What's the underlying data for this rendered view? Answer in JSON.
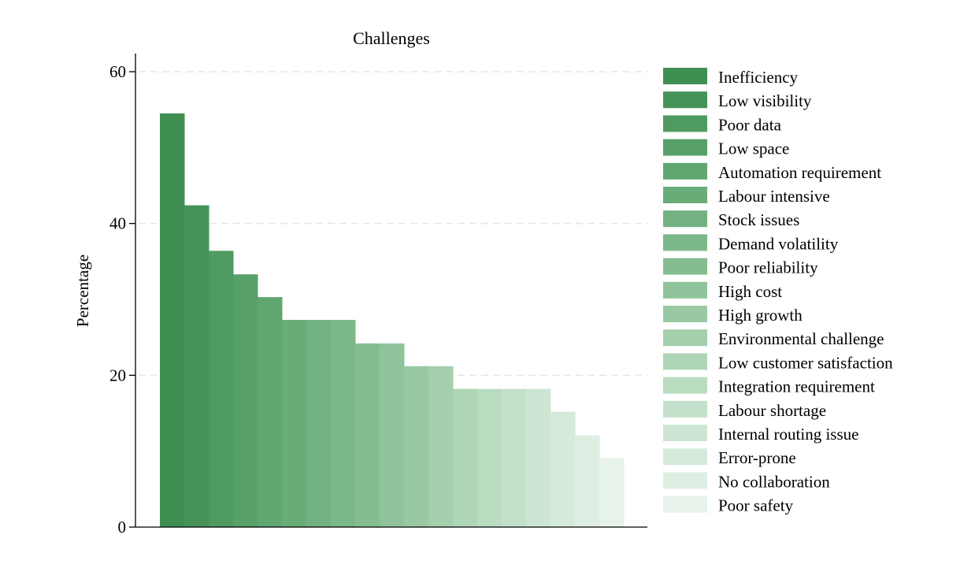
{
  "chart_data": {
    "type": "bar",
    "title": "Challenges",
    "xlabel": "",
    "ylabel": "Percentage",
    "ylim": [
      0,
      62
    ],
    "yticks": [
      0,
      20,
      40,
      60
    ],
    "grid": true,
    "legend_position": "right",
    "series": [
      {
        "name": "Inefficiency",
        "value": 54.5,
        "color": "#3f8f52"
      },
      {
        "name": "Low visibility",
        "value": 42.4,
        "color": "#46935a"
      },
      {
        "name": "Poor data",
        "value": 36.4,
        "color": "#4e9a61"
      },
      {
        "name": "Low space",
        "value": 33.3,
        "color": "#57a069"
      },
      {
        "name": "Automation requirement",
        "value": 30.3,
        "color": "#60a670"
      },
      {
        "name": "Labour intensive",
        "value": 27.3,
        "color": "#69ac78"
      },
      {
        "name": "Stock issues",
        "value": 27.3,
        "color": "#72b280"
      },
      {
        "name": "Demand volatility",
        "value": 27.3,
        "color": "#7bb788"
      },
      {
        "name": "Poor reliability",
        "value": 24.2,
        "color": "#85bd91"
      },
      {
        "name": "High cost",
        "value": 24.2,
        "color": "#8fc39a"
      },
      {
        "name": "High growth",
        "value": 21.2,
        "color": "#99c9a3"
      },
      {
        "name": "Environmental challenge",
        "value": 21.2,
        "color": "#a4cfad"
      },
      {
        "name": "Low customer satisfaction",
        "value": 18.2,
        "color": "#aed5b6"
      },
      {
        "name": "Integration requirement",
        "value": 18.2,
        "color": "#b9dbc0"
      },
      {
        "name": "Labour shortage",
        "value": 18.2,
        "color": "#c3e0ca"
      },
      {
        "name": "Internal routing issue",
        "value": 18.2,
        "color": "#cde5d3"
      },
      {
        "name": "Error-prone",
        "value": 15.2,
        "color": "#d6eadb"
      },
      {
        "name": "No collaboration",
        "value": 12.1,
        "color": "#dfeee3"
      },
      {
        "name": "Poor safety",
        "value": 9.1,
        "color": "#e7f2ea"
      }
    ]
  }
}
